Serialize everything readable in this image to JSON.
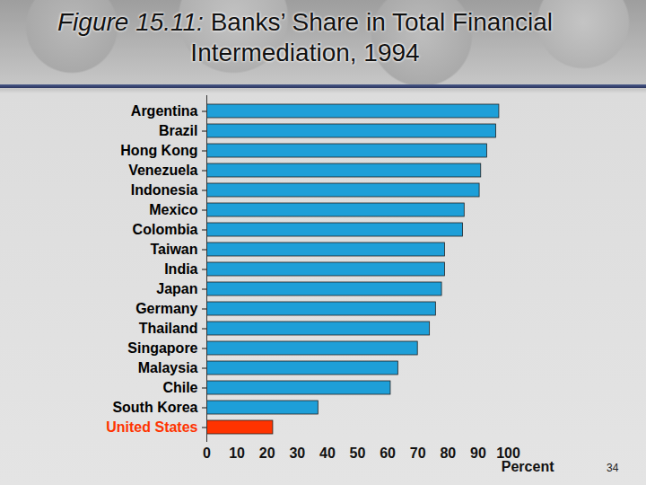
{
  "chart_data": {
    "type": "bar",
    "title": "Figure 15.11: Banks’ Share in Total Financial Intermediation, 1994",
    "orientation": "horizontal",
    "categories": [
      "Argentina",
      "Brazil",
      "Hong Kong",
      "Venezuela",
      "Indonesia",
      "Mexico",
      "Colombia",
      "Taiwan",
      "India",
      "Japan",
      "Germany",
      "Thailand",
      "Singapore",
      "Malaysia",
      "Chile",
      "South Korea",
      "United States"
    ],
    "values": [
      97,
      96,
      93,
      91,
      90.5,
      85.5,
      85,
      79,
      79,
      78,
      76,
      74,
      70,
      63.5,
      61,
      37,
      22
    ],
    "color": "#1e9fd8",
    "colors": [
      "#1e9fd8",
      "#1e9fd8",
      "#1e9fd8",
      "#1e9fd8",
      "#1e9fd8",
      "#1e9fd8",
      "#1e9fd8",
      "#1e9fd8",
      "#1e9fd8",
      "#1e9fd8",
      "#1e9fd8",
      "#1e9fd8",
      "#1e9fd8",
      "#1e9fd8",
      "#1e9fd8",
      "#1e9fd8",
      "#ff3300"
    ],
    "x_label": "Percent",
    "xlim": [
      0,
      100
    ],
    "xticks": [
      0,
      10,
      20,
      30,
      40,
      50,
      60,
      70,
      80,
      90,
      100
    ],
    "grid": false,
    "annotations": [
      "34"
    ]
  }
}
